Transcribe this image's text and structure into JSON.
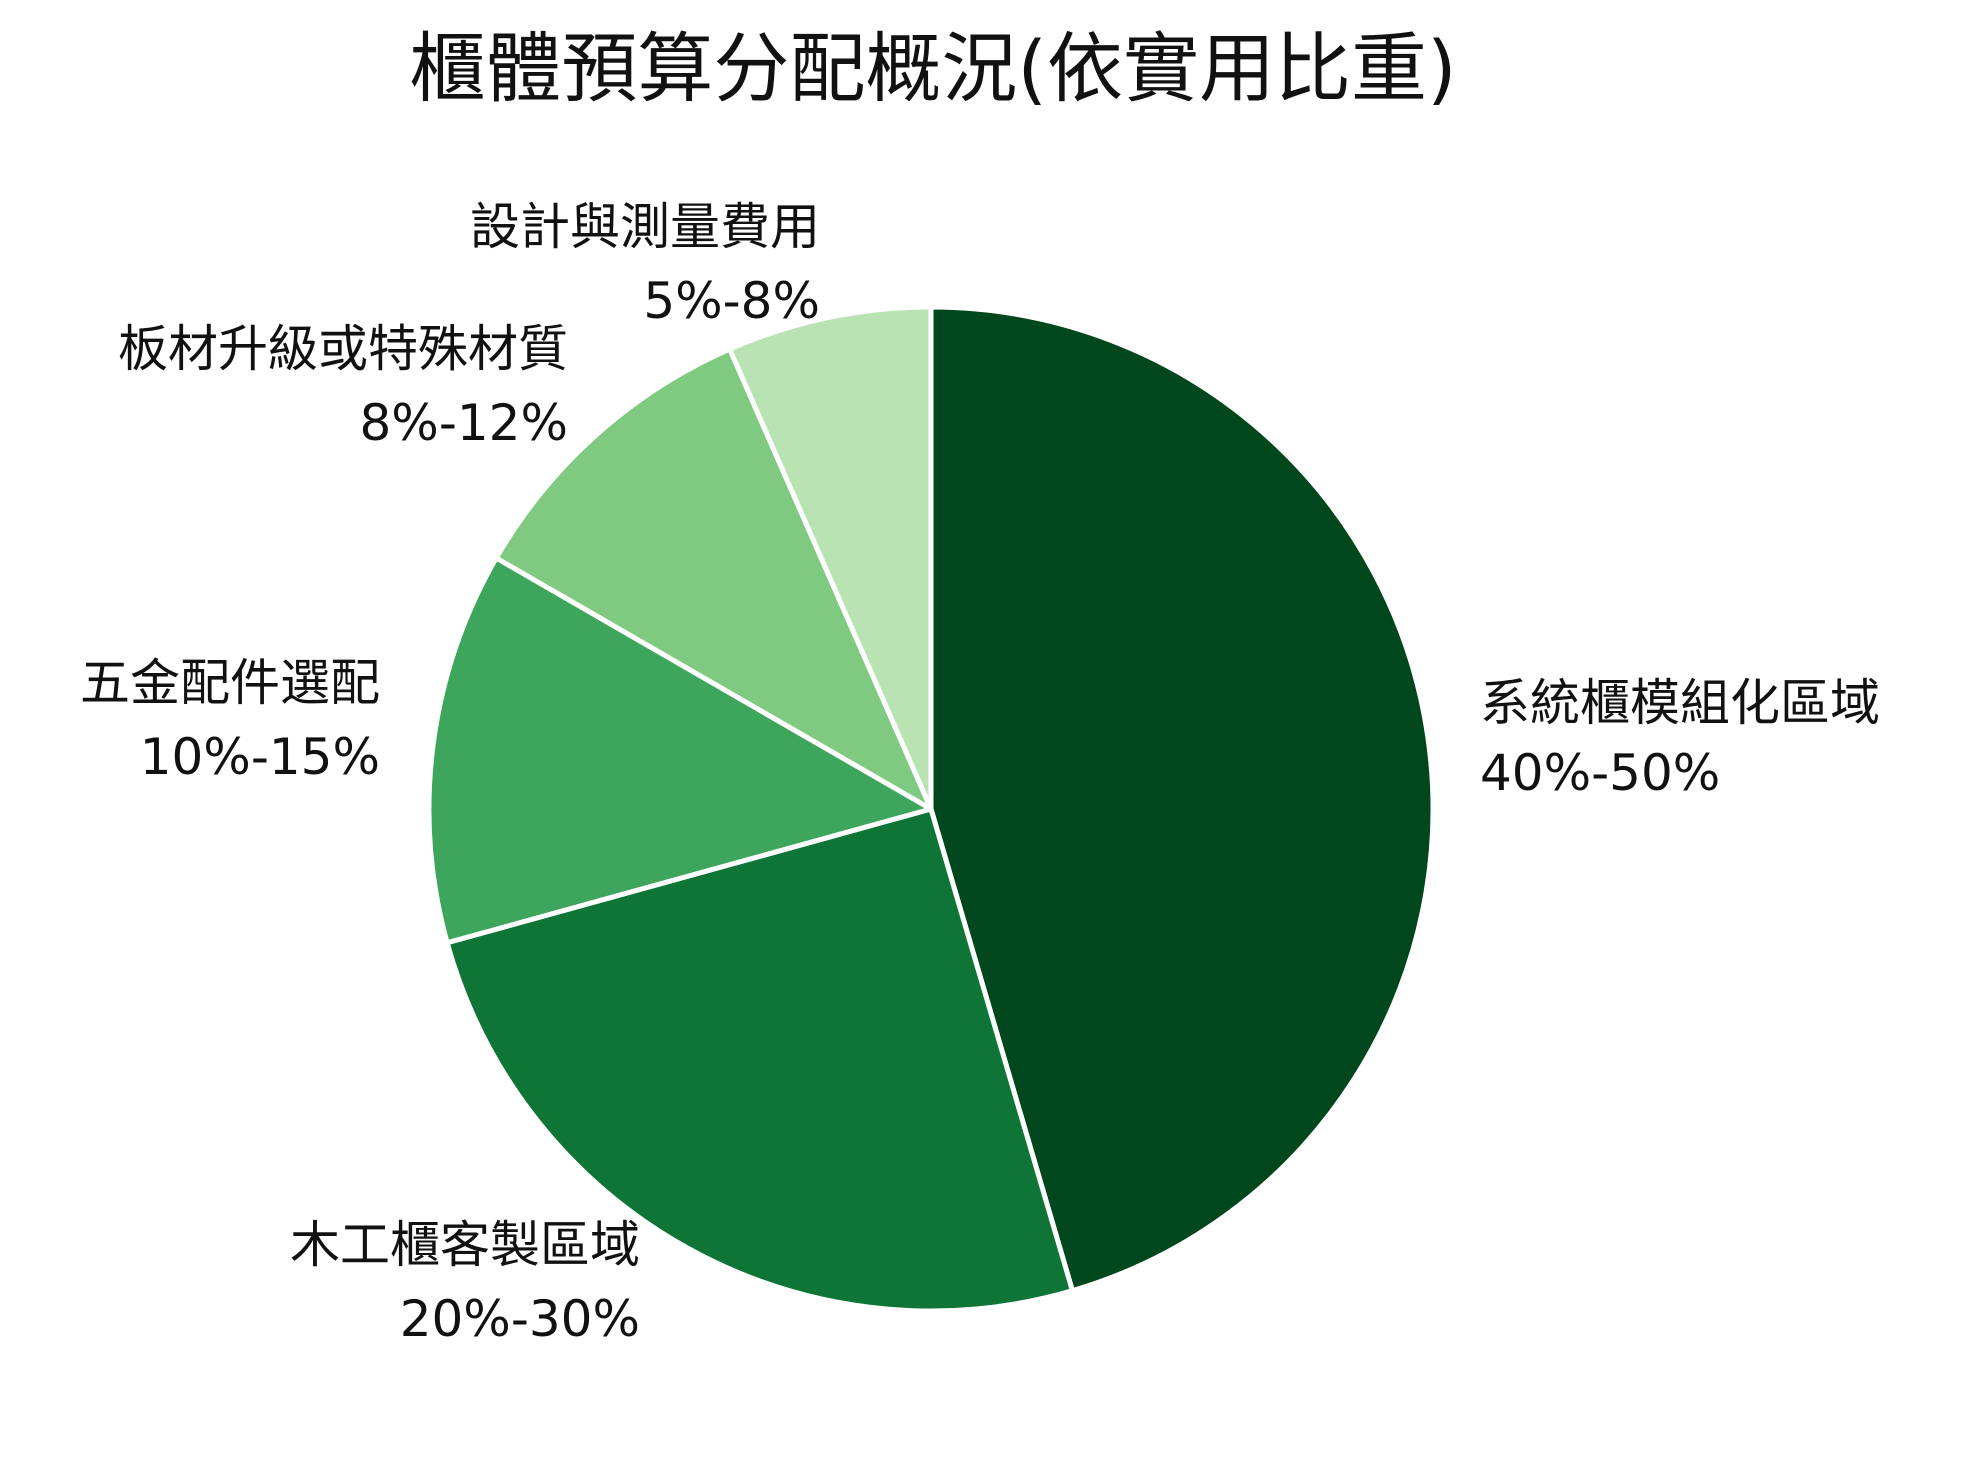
{
  "chart_data": {
    "type": "pie",
    "title": "櫃體預算分配概況(依實用比重)",
    "colors": [
      "#00471d",
      "#0e7536",
      "#3ea55c",
      "#80c981",
      "#b9e3b3"
    ],
    "slices": [
      {
        "name": "系統櫃模組化區域",
        "range": "40%-50%",
        "value": 45
      },
      {
        "name": "木工櫃客製區域",
        "range": "20%-30%",
        "value": 25
      },
      {
        "name": "五金配件選配",
        "range": "10%-15%",
        "value": 12.5
      },
      {
        "name": "板材升級或特殊材質",
        "range": "8%-12%",
        "value": 10
      },
      {
        "name": "設計與測量費用",
        "range": "5%-8%",
        "value": 6.5
      }
    ]
  }
}
